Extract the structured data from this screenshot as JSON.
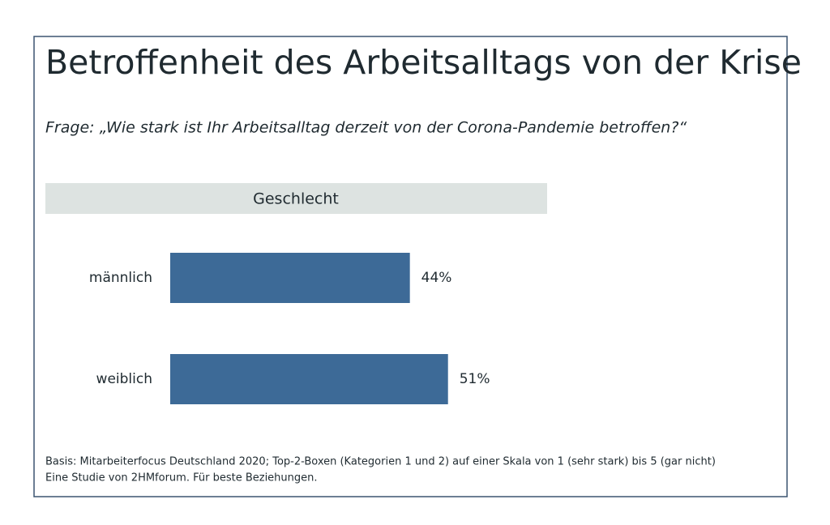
{
  "chart_data": {
    "type": "bar",
    "orientation": "horizontal",
    "title": "Betroffenheit des Arbeitsalltags von der Krise",
    "subtitle": "Frage: „Wie stark ist Ihr Arbeitsalltag derzeit von der Corona-Pandemie betroffen?“",
    "panel_title": "Geschlecht",
    "categories": [
      "männlich",
      "weiblich"
    ],
    "values": [
      44,
      51
    ],
    "value_labels": [
      "44%",
      "51%"
    ],
    "color": "#3d6a97",
    "notes": [
      "Basis: Mitarbeiterfocus Deutschland 2020; Top-2-Boxen (Kategorien 1 und 2) auf einer Skala von 1 (sehr stark) bis 5 (gar nicht)",
      "Eine Studie von 2HMforum. Für beste Beziehungen."
    ]
  }
}
